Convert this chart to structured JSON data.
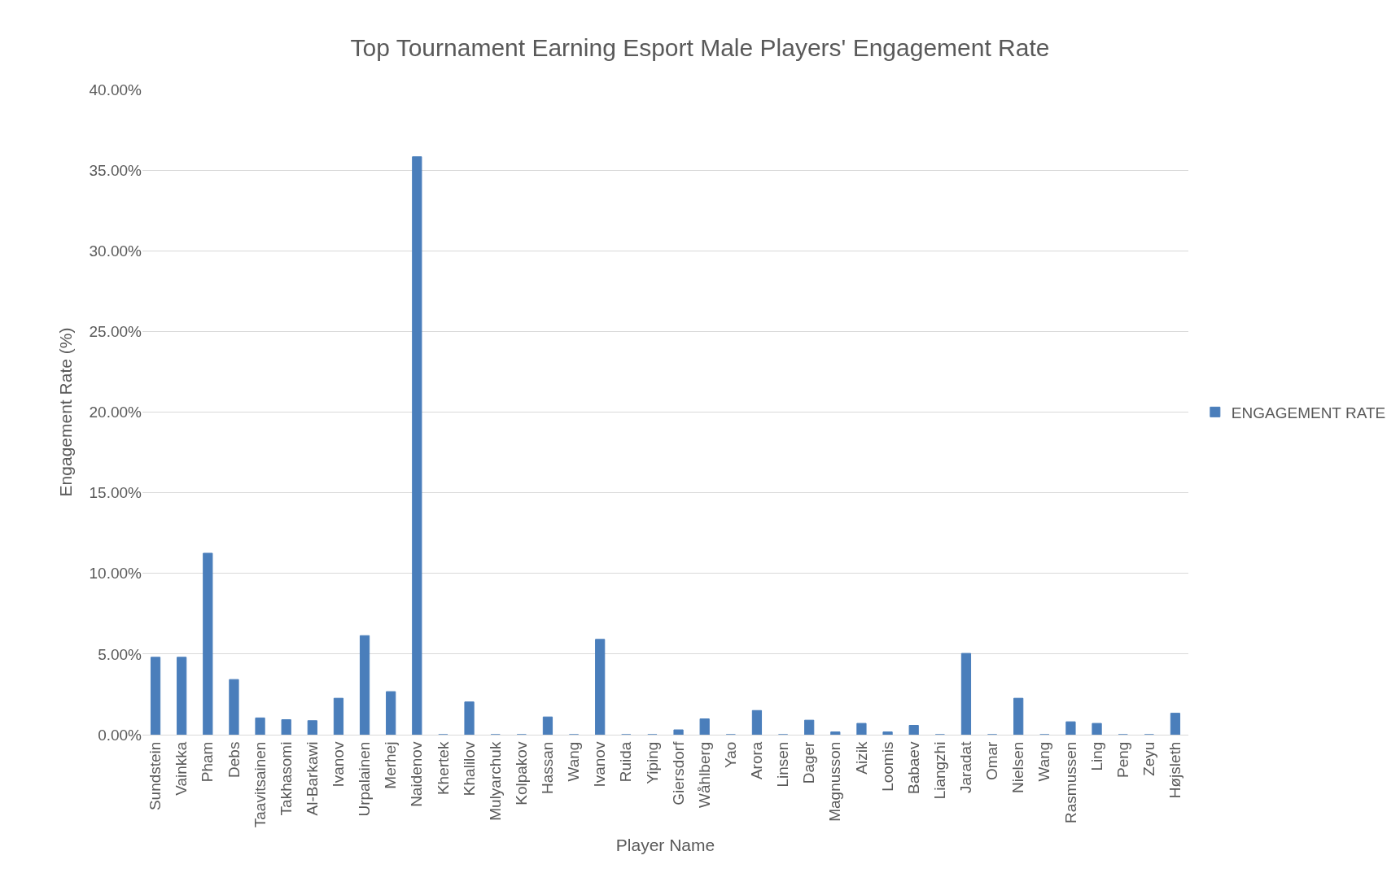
{
  "chart_data": {
    "type": "bar",
    "title": "Top Tournament Earning Esport Male Players' Engagement Rate",
    "xlabel": "Player Name",
    "ylabel": "Engagement Rate (%)",
    "categories": [
      "Sundstein",
      "Vainkka",
      "Pham",
      "Debs",
      "Taavitsainen",
      "Takhasomi",
      "Al-Barkawi",
      "Ivanov",
      "Urpalainen",
      "Merhej",
      "Naidenov",
      "Khertek",
      "Khalilov",
      "Mulyarchuk",
      "Kolpakov",
      "Hassan",
      "Wang",
      "Ivanov",
      "Ruida",
      "Yiping",
      "Giersdorf",
      "Wåhlberg",
      "Yao",
      "Arora",
      "Linsen",
      "Dager",
      "Magnusson",
      "Aizik",
      "Loomis",
      "Babaev",
      "Liangzhi",
      "Jaradat",
      "Omar",
      "Nielsen",
      "Wang",
      "Rasmussen",
      "Ling",
      "Peng",
      "Zeyu",
      "Højsleth"
    ],
    "series": [
      {
        "name": "ENGAGEMENT RATE",
        "color": "#4a7ebb",
        "values": [
          4.8,
          4.8,
          11.25,
          3.42,
          1.04,
          0.93,
          0.87,
          2.26,
          6.14,
          2.67,
          35.83,
          0,
          2.03,
          0,
          0,
          1.1,
          0,
          5.91,
          0,
          0,
          0.3,
          0.98,
          0,
          1.5,
          0,
          0.9,
          0.17,
          0.7,
          0.17,
          0.58,
          0,
          5.04,
          0,
          2.26,
          0,
          0.8,
          0.7,
          0,
          0,
          1.33
        ]
      }
    ],
    "ylim": [
      0,
      40
    ],
    "yticks": [
      {
        "value": 0,
        "label": "0.00%"
      },
      {
        "value": 5,
        "label": "5.00%"
      },
      {
        "value": 10,
        "label": "10.00%"
      },
      {
        "value": 15,
        "label": "15.00%"
      },
      {
        "value": 20,
        "label": "20.00%"
      },
      {
        "value": 25,
        "label": "25.00%"
      },
      {
        "value": 30,
        "label": "30.00%"
      },
      {
        "value": 35,
        "label": "35.00%"
      },
      {
        "value": 40,
        "label": "40.00%"
      }
    ],
    "grid": "y",
    "legend": "right"
  }
}
